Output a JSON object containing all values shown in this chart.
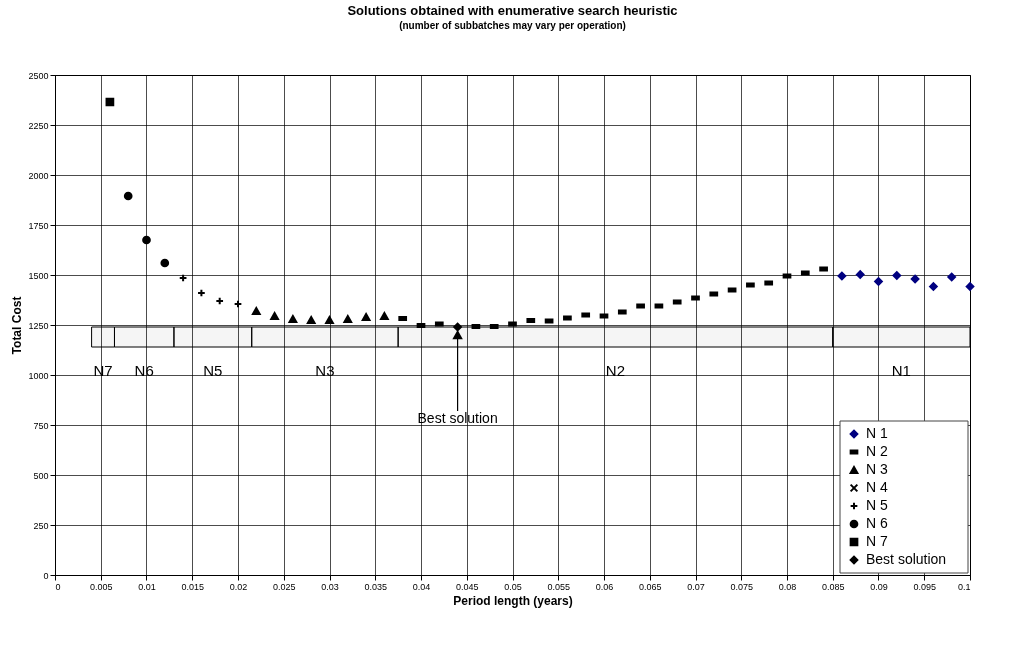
{
  "chart_data": {
    "type": "scatter",
    "title": "Solutions obtained with enumerative search heuristic",
    "subtitle": "(number of subbatches may vary per operation)",
    "xlabel": "Period length (years)",
    "ylabel": "Total Cost",
    "xlim": [
      0,
      0.1
    ],
    "xticks": [
      0,
      0.005,
      0.01,
      0.015,
      0.02,
      0.025,
      0.03,
      0.035,
      0.04,
      0.045,
      0.05,
      0.055,
      0.06,
      0.065,
      0.07,
      0.075,
      0.08,
      0.085,
      0.09,
      0.095,
      0.1
    ],
    "ylim": [
      0,
      2500
    ],
    "yticks": [
      0,
      250,
      500,
      750,
      1000,
      1250,
      1500,
      1750,
      2000,
      2250,
      2500
    ],
    "grid": true,
    "legend": "bottom right",
    "series": [
      {
        "name": "N 1",
        "color": "#000080",
        "marker": "diamond",
        "x": [
          0.086,
          0.088,
          0.09,
          0.092,
          0.094,
          0.096,
          0.098,
          0.1
        ],
        "values": [
          1495,
          1502,
          1468,
          1498,
          1480,
          1442,
          1490,
          1442
        ]
      },
      {
        "name": "N 2",
        "color": "#000000",
        "x": [
          0.038,
          0.04,
          0.042,
          0.046,
          0.048,
          0.05,
          0.052,
          0.054,
          0.056,
          0.058,
          0.06,
          0.062,
          0.064,
          0.066,
          0.068,
          0.07,
          0.072,
          0.074,
          0.076,
          0.078,
          0.08,
          0.082,
          0.084
        ],
        "values": [
          1282,
          1248,
          1255,
          1242,
          1242,
          1255,
          1272,
          1270,
          1285,
          1300,
          1295,
          1315,
          1345,
          1345,
          1365,
          1385,
          1405,
          1425,
          1450,
          1460,
          1495,
          1510,
          1530
        ]
      },
      {
        "name": "N 3",
        "color": "#000000",
        "marker": "triangle",
        "x": [
          0.022,
          0.024,
          0.026,
          0.028,
          0.03,
          0.032,
          0.034,
          0.036
        ],
        "values": [
          1320,
          1295,
          1280,
          1275,
          1275,
          1280,
          1290,
          1295
        ]
      },
      {
        "name": "N 4",
        "color": "#000000",
        "marker": "x"
      },
      {
        "name": "N 5",
        "color": "#000000",
        "marker": "cross",
        "x": [
          0.014,
          0.016,
          0.018,
          0.02
        ],
        "values": [
          1485,
          1410,
          1370,
          1355
        ]
      },
      {
        "name": "N 6",
        "color": "#000000",
        "marker": "circle",
        "x": [
          0.008,
          0.01,
          0.012
        ],
        "values": [
          1895,
          1675,
          1560
        ]
      },
      {
        "name": "N 7",
        "color": "#000000",
        "marker": "square",
        "x": [
          0.006
        ],
        "values": [
          2365
        ]
      },
      {
        "name": "Best solution",
        "color": "#000000",
        "marker": "diamond",
        "x": [
          0.044
        ],
        "values": [
          1240
        ]
      }
    ],
    "bands": [
      {
        "axis": "x",
        "from": 0.004,
        "to": 0.0065,
        "label": "N7"
      },
      {
        "axis": "x",
        "from": 0.0065,
        "to": 0.013,
        "label": "N6"
      },
      {
        "axis": "x",
        "from": 0.013,
        "to": 0.0215,
        "label": "N5"
      },
      {
        "axis": "x",
        "from": 0.0215,
        "to": 0.0375,
        "label": "N3"
      },
      {
        "axis": "x",
        "from": 0.0375,
        "to": 0.085,
        "label": "N2"
      },
      {
        "axis": "x",
        "from": 0.085,
        "to": 0.1,
        "label": "N1"
      }
    ],
    "annotations": [
      {
        "text": "Best solution",
        "x": 0.044,
        "y": 1240
      }
    ]
  }
}
